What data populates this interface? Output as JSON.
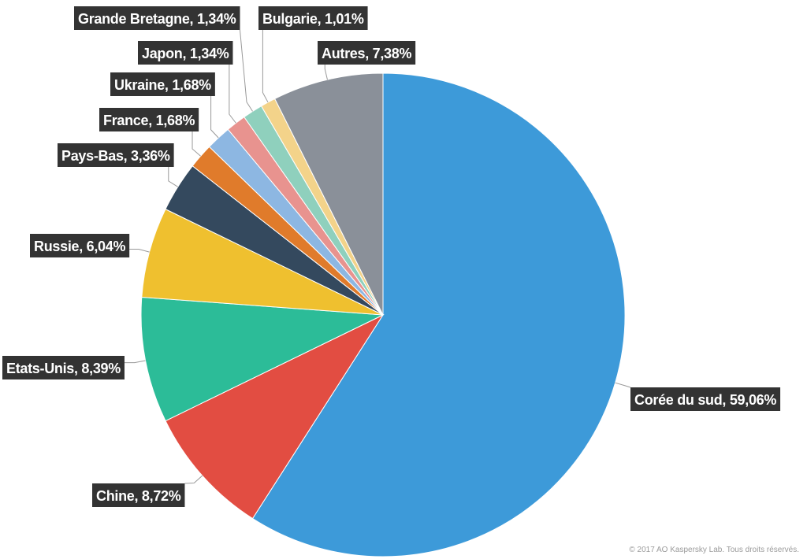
{
  "chart_data": {
    "type": "pie",
    "title": "",
    "start": "12 o'clock",
    "direction": "clockwise",
    "slices": [
      {
        "label": "Corée du sud, 59,06%",
        "value": 59.06,
        "color": "#3d9ad9"
      },
      {
        "label": "Chine, 8,72%",
        "value": 8.72,
        "color": "#e24d42"
      },
      {
        "label": "Etats-Unis, 8,39%",
        "value": 8.39,
        "color": "#2cbc98"
      },
      {
        "label": "Russie, 6,04%",
        "value": 6.04,
        "color": "#efc02f"
      },
      {
        "label": "Pays-Bas, 3,36%",
        "value": 3.36,
        "color": "#34495e"
      },
      {
        "label": "France, 1,68%",
        "value": 1.68,
        "color": "#e07b2b"
      },
      {
        "label": "Ukraine, 1,68%",
        "value": 1.68,
        "color": "#8db7e2"
      },
      {
        "label": "Japon, 1,34%",
        "value": 1.34,
        "color": "#e8938f"
      },
      {
        "label": "Grande Bretagne, 1,34%",
        "value": 1.34,
        "color": "#8fd0bd"
      },
      {
        "label": "Bulgarie, 1,01%",
        "value": 1.01,
        "color": "#f3d38a"
      },
      {
        "label": "Autres, 7,38%",
        "value": 7.38,
        "color": "#8a9099"
      }
    ],
    "label_style": {
      "box_color": "#333333",
      "text_color": "#ffffff"
    }
  },
  "footer": {
    "copyright": "© 2017 AO Kaspersky Lab. Tous droits réservés."
  }
}
